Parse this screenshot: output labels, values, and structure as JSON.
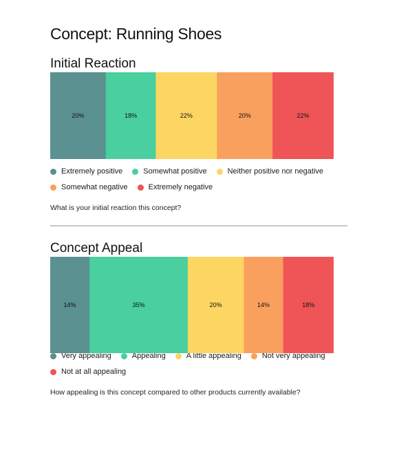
{
  "page": {
    "title": "Concept: Running Shoes"
  },
  "chart_data": [
    {
      "type": "bar",
      "orientation": "horizontal-stacked-100",
      "title": "Initial Reaction",
      "question": "What is your initial reaction this concept?",
      "series": [
        {
          "name": "Extremely positive",
          "value": 20,
          "label": "20%",
          "color": "#5b9190"
        },
        {
          "name": "Somewhat positive",
          "value": 18,
          "label": "18%",
          "color": "#4acf9f"
        },
        {
          "name": "Neither positive nor negative",
          "value": 22,
          "label": "22%",
          "color": "#fdd563"
        },
        {
          "name": "Somewhat negative",
          "value": 20,
          "label": "20%",
          "color": "#f9a05e"
        },
        {
          "name": "Extremely negative",
          "value": 22,
          "label": "22%",
          "color": "#ef5556"
        }
      ]
    },
    {
      "type": "bar",
      "orientation": "horizontal-stacked-100",
      "title": "Concept Appeal",
      "question": "How appealing is this concept compared to other products currently available?",
      "series": [
        {
          "name": "Very appealing",
          "value": 14,
          "label": "14%",
          "color": "#5b9190"
        },
        {
          "name": "Appealing",
          "value": 35,
          "label": "35%",
          "color": "#4acf9f"
        },
        {
          "name": "A little appealing",
          "value": 20,
          "label": "20%",
          "color": "#fdd563"
        },
        {
          "name": "Not very appealing",
          "value": 14,
          "label": "14%",
          "color": "#f9a05e"
        },
        {
          "name": "Not at all appealing",
          "value": 18,
          "label": "18%",
          "color": "#ef5556"
        }
      ]
    }
  ]
}
